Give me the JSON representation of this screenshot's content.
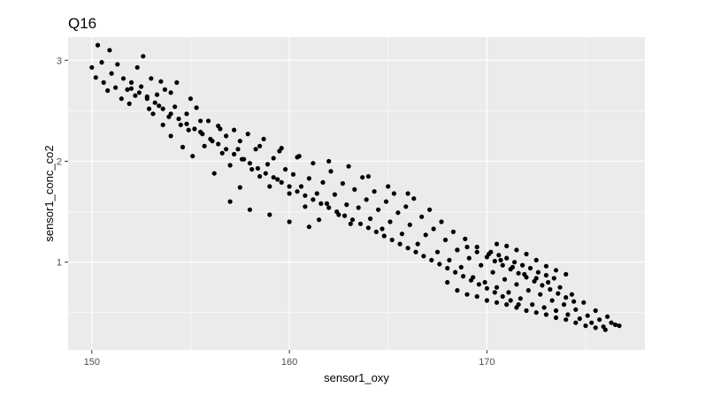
{
  "chart_data": {
    "type": "scatter",
    "title": "Q16",
    "xlabel": "sensor1_oxy",
    "ylabel": "sensor1_conc_co2",
    "x_ticks": [
      150,
      160,
      170
    ],
    "y_ticks": [
      1,
      2,
      3
    ],
    "xlim": [
      148.8,
      178.0
    ],
    "ylim": [
      0.13,
      3.23
    ],
    "grid": true,
    "legend": "none",
    "colors": {
      "panel": "#ebebeb",
      "grid": "#ffffff",
      "point": "#000000",
      "tick": "#4d4d4d"
    },
    "points": [
      [
        150.0,
        2.93
      ],
      [
        150.2,
        2.83
      ],
      [
        150.3,
        3.15
      ],
      [
        150.5,
        2.98
      ],
      [
        150.6,
        2.78
      ],
      [
        150.8,
        2.7
      ],
      [
        150.9,
        3.1
      ],
      [
        151.0,
        2.87
      ],
      [
        151.2,
        2.73
      ],
      [
        151.3,
        2.96
      ],
      [
        151.5,
        2.62
      ],
      [
        151.6,
        2.82
      ],
      [
        151.8,
        2.71
      ],
      [
        151.9,
        2.57
      ],
      [
        152.0,
        2.78
      ],
      [
        152.2,
        2.65
      ],
      [
        152.3,
        2.93
      ],
      [
        152.5,
        2.74
      ],
      [
        152.6,
        3.04
      ],
      [
        152.8,
        2.64
      ],
      [
        152.9,
        2.52
      ],
      [
        153.0,
        2.82
      ],
      [
        153.1,
        2.47
      ],
      [
        153.3,
        2.66
      ],
      [
        153.4,
        2.55
      ],
      [
        153.6,
        2.36
      ],
      [
        153.7,
        2.71
      ],
      [
        153.9,
        2.44
      ],
      [
        154.0,
        2.25
      ],
      [
        154.2,
        2.54
      ],
      [
        154.3,
        2.78
      ],
      [
        154.5,
        2.36
      ],
      [
        154.6,
        2.14
      ],
      [
        154.8,
        2.47
      ],
      [
        154.9,
        2.31
      ],
      [
        155.1,
        2.05
      ],
      [
        155.3,
        2.53
      ],
      [
        155.5,
        2.29
      ],
      [
        155.7,
        2.15
      ],
      [
        155.9,
        2.4
      ],
      [
        156.1,
        2.2
      ],
      [
        156.2,
        1.88
      ],
      [
        156.4,
        2.35
      ],
      [
        156.6,
        2.08
      ],
      [
        156.8,
        2.25
      ],
      [
        157.0,
        1.96
      ],
      [
        157.2,
        2.31
      ],
      [
        157.4,
        2.12
      ],
      [
        157.5,
        1.74
      ],
      [
        157.7,
        2.02
      ],
      [
        157.9,
        2.27
      ],
      [
        158.1,
        1.92
      ],
      [
        158.3,
        2.12
      ],
      [
        158.5,
        1.85
      ],
      [
        158.7,
        2.22
      ],
      [
        158.9,
        1.97
      ],
      [
        159.0,
        1.75
      ],
      [
        159.2,
        2.03
      ],
      [
        159.4,
        1.82
      ],
      [
        159.6,
        2.13
      ],
      [
        159.8,
        1.92
      ],
      [
        160.0,
        1.68
      ],
      [
        160.2,
        1.87
      ],
      [
        160.4,
        2.04
      ],
      [
        160.6,
        1.75
      ],
      [
        160.8,
        1.55
      ],
      [
        161.0,
        1.83
      ],
      [
        161.2,
        1.98
      ],
      [
        161.4,
        1.68
      ],
      [
        161.5,
        1.42
      ],
      [
        161.7,
        1.79
      ],
      [
        161.9,
        1.58
      ],
      [
        162.1,
        1.9
      ],
      [
        162.3,
        1.67
      ],
      [
        162.5,
        1.47
      ],
      [
        162.7,
        1.78
      ],
      [
        162.9,
        1.57
      ],
      [
        163.1,
        1.38
      ],
      [
        163.3,
        1.72
      ],
      [
        163.5,
        1.54
      ],
      [
        163.7,
        1.84
      ],
      [
        163.9,
        1.62
      ],
      [
        164.1,
        1.43
      ],
      [
        164.3,
        1.7
      ],
      [
        164.5,
        1.52
      ],
      [
        164.7,
        1.33
      ],
      [
        164.9,
        1.6
      ],
      [
        165.1,
        1.4
      ],
      [
        165.3,
        1.68
      ],
      [
        165.5,
        1.49
      ],
      [
        165.7,
        1.28
      ],
      [
        165.9,
        1.55
      ],
      [
        166.1,
        1.37
      ],
      [
        166.3,
        1.63
      ],
      [
        166.5,
        1.18
      ],
      [
        166.7,
        1.45
      ],
      [
        166.9,
        1.27
      ],
      [
        167.1,
        1.52
      ],
      [
        167.3,
        1.33
      ],
      [
        167.5,
        1.1
      ],
      [
        167.7,
        1.4
      ],
      [
        167.9,
        1.22
      ],
      [
        168.1,
        1.02
      ],
      [
        168.3,
        1.3
      ],
      [
        168.5,
        1.12
      ],
      [
        168.7,
        0.95
      ],
      [
        168.9,
        1.23
      ],
      [
        169.1,
        1.04
      ],
      [
        169.3,
        0.85
      ],
      [
        169.5,
        1.15
      ],
      [
        169.7,
        0.97
      ],
      [
        169.9,
        0.8
      ],
      [
        170.1,
        1.08
      ],
      [
        170.3,
        0.9
      ],
      [
        170.5,
        0.75
      ],
      [
        170.7,
        1.02
      ],
      [
        170.9,
        0.83
      ],
      [
        171.1,
        0.7
      ],
      [
        171.3,
        0.95
      ],
      [
        171.5,
        0.78
      ],
      [
        171.7,
        0.64
      ],
      [
        171.9,
        0.88
      ],
      [
        172.1,
        0.72
      ],
      [
        172.3,
        0.58
      ],
      [
        172.5,
        0.84
      ],
      [
        172.7,
        0.68
      ],
      [
        172.9,
        0.55
      ],
      [
        173.1,
        0.8
      ],
      [
        173.3,
        0.62
      ],
      [
        173.5,
        0.52
      ],
      [
        173.7,
        0.75
      ],
      [
        173.9,
        0.58
      ],
      [
        174.1,
        0.48
      ],
      [
        174.3,
        0.68
      ],
      [
        174.5,
        0.53
      ],
      [
        174.7,
        0.44
      ],
      [
        174.9,
        0.6
      ],
      [
        175.1,
        0.47
      ],
      [
        175.3,
        0.4
      ],
      [
        175.5,
        0.52
      ],
      [
        175.7,
        0.43
      ],
      [
        175.9,
        0.36
      ],
      [
        176.1,
        0.46
      ],
      [
        176.3,
        0.4
      ],
      [
        176.5,
        0.38
      ],
      [
        176.7,
        0.37
      ],
      [
        152.0,
        2.72
      ],
      [
        152.4,
        2.68
      ],
      [
        152.8,
        2.62
      ],
      [
        153.2,
        2.58
      ],
      [
        153.6,
        2.52
      ],
      [
        154.0,
        2.47
      ],
      [
        154.4,
        2.42
      ],
      [
        154.8,
        2.37
      ],
      [
        155.2,
        2.32
      ],
      [
        155.6,
        2.27
      ],
      [
        156.0,
        2.22
      ],
      [
        156.4,
        2.17
      ],
      [
        156.8,
        2.12
      ],
      [
        157.2,
        2.07
      ],
      [
        157.6,
        2.02
      ],
      [
        158.0,
        1.98
      ],
      [
        158.4,
        1.93
      ],
      [
        158.8,
        1.88
      ],
      [
        159.2,
        1.84
      ],
      [
        159.6,
        1.79
      ],
      [
        160.0,
        1.75
      ],
      [
        160.4,
        1.7
      ],
      [
        160.8,
        1.66
      ],
      [
        161.2,
        1.62
      ],
      [
        161.6,
        1.58
      ],
      [
        162.0,
        1.54
      ],
      [
        162.4,
        1.5
      ],
      [
        162.8,
        1.46
      ],
      [
        163.2,
        1.42
      ],
      [
        163.6,
        1.38
      ],
      [
        164.0,
        1.34
      ],
      [
        164.4,
        1.3
      ],
      [
        164.8,
        1.26
      ],
      [
        165.2,
        1.22
      ],
      [
        165.6,
        1.18
      ],
      [
        166.0,
        1.14
      ],
      [
        166.4,
        1.1
      ],
      [
        166.8,
        1.06
      ],
      [
        167.2,
        1.02
      ],
      [
        167.6,
        0.98
      ],
      [
        168.0,
        0.94
      ],
      [
        168.4,
        0.9
      ],
      [
        168.8,
        0.86
      ],
      [
        169.2,
        0.82
      ],
      [
        169.6,
        0.78
      ],
      [
        170.0,
        0.74
      ],
      [
        170.4,
        0.7
      ],
      [
        170.8,
        0.66
      ],
      [
        171.2,
        0.62
      ],
      [
        171.6,
        0.58
      ],
      [
        170.0,
        1.05
      ],
      [
        170.4,
        1.01
      ],
      [
        170.8,
        0.97
      ],
      [
        171.2,
        0.93
      ],
      [
        171.6,
        0.89
      ],
      [
        172.0,
        0.85
      ],
      [
        172.4,
        0.81
      ],
      [
        172.8,
        0.77
      ],
      [
        173.2,
        0.73
      ],
      [
        173.6,
        0.69
      ],
      [
        174.0,
        0.65
      ],
      [
        174.4,
        0.61
      ],
      [
        170.2,
        1.1
      ],
      [
        170.6,
        1.07
      ],
      [
        171.0,
        1.04
      ],
      [
        171.4,
        1.0
      ],
      [
        171.8,
        0.97
      ],
      [
        172.2,
        0.94
      ],
      [
        172.6,
        0.9
      ],
      [
        173.0,
        0.87
      ],
      [
        173.4,
        0.84
      ],
      [
        168.5,
        1.12
      ],
      [
        169.0,
        1.15
      ],
      [
        169.5,
        1.1
      ],
      [
        170.5,
        1.18
      ],
      [
        171.0,
        1.16
      ],
      [
        171.5,
        1.12
      ],
      [
        172.0,
        1.08
      ],
      [
        172.5,
        1.02
      ],
      [
        173.0,
        0.96
      ],
      [
        173.5,
        0.92
      ],
      [
        174.0,
        0.88
      ],
      [
        168.0,
        0.8
      ],
      [
        168.5,
        0.72
      ],
      [
        169.0,
        0.68
      ],
      [
        169.5,
        0.66
      ],
      [
        170.0,
        0.62
      ],
      [
        170.5,
        0.6
      ],
      [
        171.0,
        0.58
      ],
      [
        171.5,
        0.55
      ],
      [
        172.0,
        0.52
      ],
      [
        172.5,
        0.5
      ],
      [
        173.0,
        0.48
      ],
      [
        173.5,
        0.45
      ],
      [
        174.0,
        0.43
      ],
      [
        174.5,
        0.4
      ],
      [
        175.0,
        0.37
      ],
      [
        175.5,
        0.35
      ],
      [
        176.0,
        0.33
      ],
      [
        157.0,
        1.6
      ],
      [
        158.0,
        1.52
      ],
      [
        159.0,
        1.47
      ],
      [
        160.0,
        1.4
      ],
      [
        161.0,
        1.35
      ],
      [
        164.0,
        1.85
      ],
      [
        165.0,
        1.75
      ],
      [
        166.0,
        1.68
      ],
      [
        163.0,
        1.95
      ],
      [
        162.0,
        2.0
      ],
      [
        160.5,
        2.05
      ],
      [
        159.5,
        2.1
      ],
      [
        158.5,
        2.15
      ],
      [
        155.0,
        2.62
      ],
      [
        154.0,
        2.68
      ],
      [
        153.5,
        2.79
      ],
      [
        155.5,
        2.4
      ],
      [
        156.5,
        2.32
      ],
      [
        157.5,
        2.2
      ]
    ]
  }
}
